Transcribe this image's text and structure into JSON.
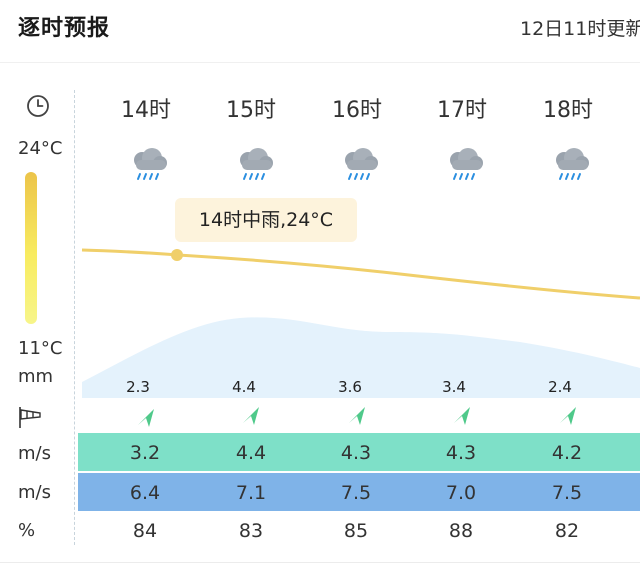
{
  "header": {
    "title": "逐时预报",
    "updated": "12日11时更新"
  },
  "scale": {
    "clock_icon": "clock-icon",
    "temp_high": "24°C",
    "temp_low": "11°C",
    "precip_unit": "mm",
    "wind_icon": "windsock-icon"
  },
  "hours": [
    "14时",
    "15时",
    "16时",
    "17时",
    "18时"
  ],
  "weather_icon": "rain-cloud-icon",
  "tooltip": "14时中雨,24°C",
  "precip": [
    "2.3",
    "4.4",
    "3.6",
    "3.4",
    "2.4"
  ],
  "rows": [
    {
      "unit": "m/s",
      "values": [
        "3.2",
        "4.4",
        "4.3",
        "4.3",
        "4.2"
      ],
      "color": "#7ee0c8"
    },
    {
      "unit": "m/s",
      "values": [
        "6.4",
        "7.1",
        "7.5",
        "7.0",
        "7.5"
      ],
      "color": "#7fb3e8"
    },
    {
      "unit": "%",
      "values": [
        "84",
        "83",
        "85",
        "88",
        "82"
      ],
      "color": "#ffffff"
    }
  ],
  "colors": {
    "temp_line": "#f0cf6a",
    "precip_area": "#e3f2fc",
    "wind_arrow": "#4fc98a"
  }
}
